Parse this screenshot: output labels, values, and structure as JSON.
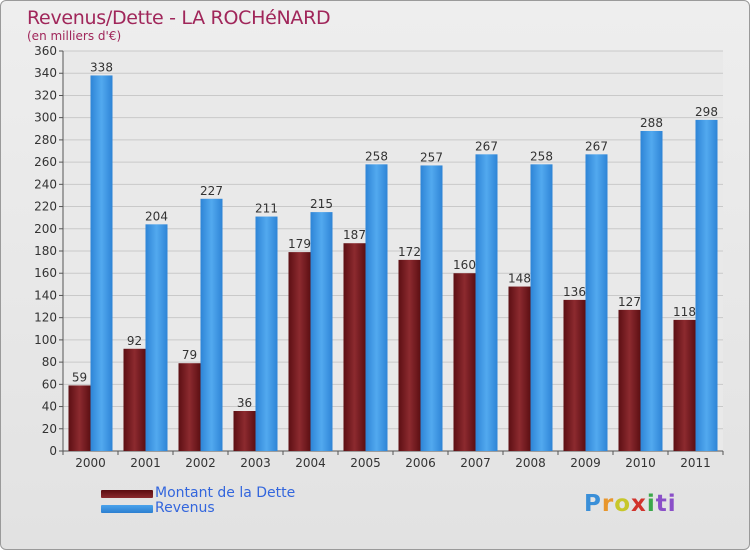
{
  "header": {
    "title": "Revenus/Dette - LA ROCHéNARD",
    "subtitle": "(en milliers d'€)"
  },
  "legend": {
    "debt_label": "Montant de la Dette",
    "revenue_label": "Revenus"
  },
  "logo": {
    "text": "Proxiti"
  },
  "colors": {
    "debt": "#7a1c20",
    "revenue": "#3f97e4",
    "title": "#a0265a",
    "legend_text": "#3366dd"
  },
  "chart_data": {
    "type": "bar",
    "title": "Revenus/Dette - LA ROCHéNARD",
    "ylabel": "(en milliers d'€)",
    "xlabel": "",
    "categories": [
      "2000",
      "2001",
      "2002",
      "2003",
      "2004",
      "2005",
      "2006",
      "2007",
      "2008",
      "2009",
      "2010",
      "2011"
    ],
    "series": [
      {
        "name": "Montant de la Dette",
        "values": [
          59,
          92,
          79,
          36,
          179,
          187,
          172,
          160,
          148,
          136,
          127,
          118
        ]
      },
      {
        "name": "Revenus",
        "values": [
          338,
          204,
          227,
          211,
          215,
          258,
          257,
          267,
          258,
          267,
          288,
          298
        ]
      }
    ],
    "ylim": [
      0,
      360
    ],
    "ytick_step": 20,
    "grid": true,
    "legend_position": "bottom-left"
  }
}
